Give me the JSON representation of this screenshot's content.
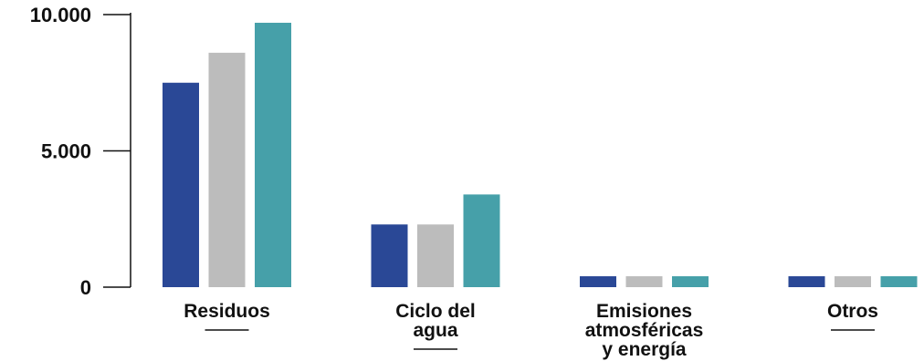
{
  "chart_data": {
    "type": "bar",
    "categories": [
      [
        "Residuos"
      ],
      [
        "Ciclo del",
        "agua"
      ],
      [
        "Emisiones",
        "atmosféricas",
        "y energía"
      ],
      [
        "Otros"
      ]
    ],
    "series": [
      {
        "color": "#2a4896",
        "values": [
          7500,
          2300,
          400,
          400
        ]
      },
      {
        "color": "#bcbcbc",
        "values": [
          8600,
          2300,
          400,
          400
        ]
      },
      {
        "color": "#46a0a9",
        "values": [
          9700,
          3400,
          400,
          400
        ]
      }
    ],
    "yticks": [
      "10.000",
      "5.000",
      "0"
    ],
    "ytick_values": [
      10000,
      5000,
      0
    ],
    "ylim": [
      0,
      10000
    ],
    "xlabel": "",
    "ylabel": "",
    "title": "",
    "grid": false,
    "legend": "none"
  }
}
